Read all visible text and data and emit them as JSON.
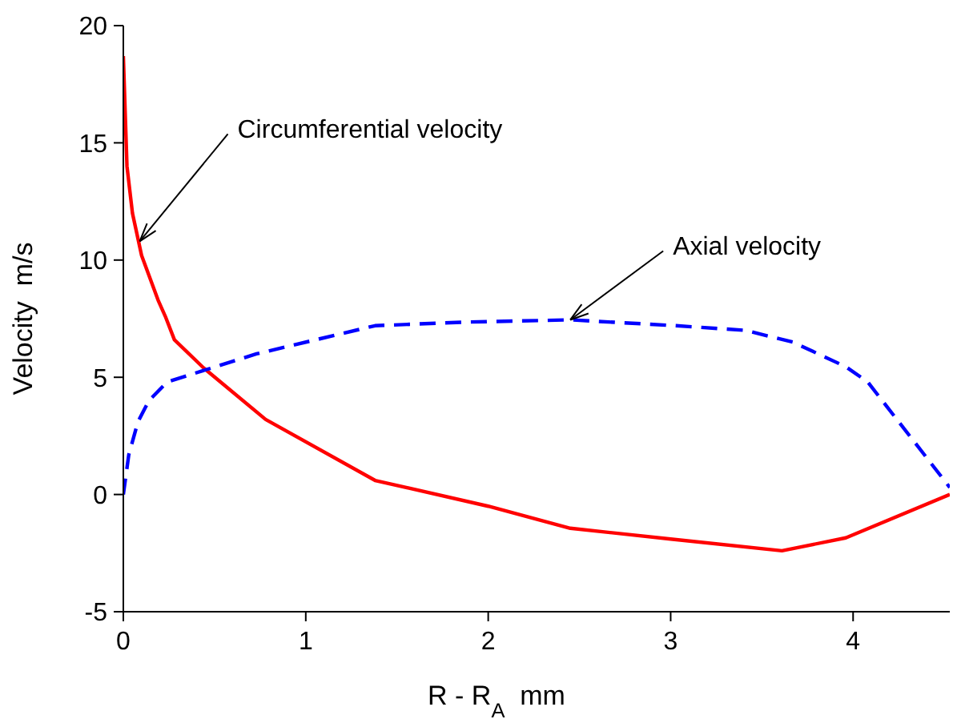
{
  "chart_data": {
    "type": "line",
    "xlabel": "R - R$_{A}$  mm",
    "ylabel": "Velocity  m/s",
    "xlim": [
      0,
      4.53
    ],
    "xticks": [
      0,
      1,
      2,
      3,
      4
    ],
    "ylim": [
      -5,
      20
    ],
    "yticks": [
      -5,
      0,
      5,
      10,
      15,
      20
    ],
    "grid": false,
    "series": [
      {
        "color": "#ff0000",
        "line_style": "solid",
        "x": [
          0,
          0.02,
          0.05,
          0.1,
          0.19,
          0.23,
          0.28,
          0.44,
          0.78,
          1.38,
          2.0,
          2.45,
          3.0,
          3.61,
          3.96,
          4.53
        ],
        "values": [
          18.7,
          14,
          12,
          10.2,
          8.3,
          7.6,
          6.6,
          5.4,
          3.2,
          0.6,
          -0.5,
          -1.44,
          -1.9,
          -2.4,
          -1.85,
          0
        ]
      },
      {
        "color": "#0000ff",
        "line_style": "dashed",
        "x": [
          0,
          0.03,
          0.08,
          0.14,
          0.24,
          0.73,
          1.38,
          1.86,
          2.45,
          3.03,
          3.41,
          3.67,
          3.96,
          4.08,
          4.53
        ],
        "values": [
          0,
          1.7,
          3.1,
          4.0,
          4.8,
          6.0,
          7.2,
          7.35,
          7.45,
          7.2,
          7.0,
          6.5,
          5.45,
          4.8,
          0.3
        ]
      }
    ],
    "annotations": [
      {
        "text": "Circumferential velocity",
        "x": 0.09,
        "y": 10.8
      },
      {
        "text": "Axial velocity",
        "x": 2.45,
        "y": 7.45
      }
    ]
  }
}
